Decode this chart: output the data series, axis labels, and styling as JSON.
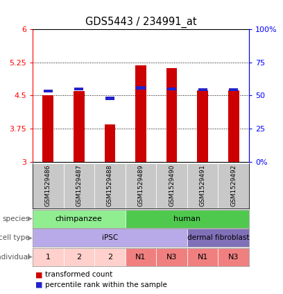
{
  "title": "GDS5443 / 234991_at",
  "samples": [
    "GSM1529486",
    "GSM1529487",
    "GSM1529488",
    "GSM1529489",
    "GSM1529490",
    "GSM1529491",
    "GSM1529492"
  ],
  "red_values": [
    4.5,
    4.6,
    3.85,
    5.18,
    5.13,
    4.62,
    4.62
  ],
  "blue_values": [
    4.6,
    4.65,
    4.44,
    4.67,
    4.65,
    4.63,
    4.63
  ],
  "y_min": 3.0,
  "y_max": 6.0,
  "y_ticks": [
    3,
    3.75,
    4.5,
    5.25,
    6
  ],
  "y_tick_labels": [
    "3",
    "3.75",
    "4.5",
    "5.25",
    "6"
  ],
  "y2_ticks_pct": [
    0,
    25,
    50,
    75,
    100
  ],
  "y2_tick_labels": [
    "0%",
    "25",
    "50",
    "75",
    "100%"
  ],
  "dotted_lines": [
    3.75,
    4.5,
    5.25
  ],
  "species": [
    {
      "label": "chimpanzee",
      "start": 0,
      "end": 3,
      "color": "#90ee90"
    },
    {
      "label": "human",
      "start": 3,
      "end": 7,
      "color": "#4ec94e"
    }
  ],
  "cell_type": [
    {
      "label": "iPSC",
      "start": 0,
      "end": 5,
      "color": "#b8aae8"
    },
    {
      "label": "dermal fibroblast",
      "start": 5,
      "end": 7,
      "color": "#8070b8"
    }
  ],
  "individual": [
    {
      "label": "1",
      "start": 0,
      "end": 1,
      "color": "#ffd0cc"
    },
    {
      "label": "2",
      "start": 1,
      "end": 2,
      "color": "#ffd0cc"
    },
    {
      "label": "2",
      "start": 2,
      "end": 3,
      "color": "#ffd0cc"
    },
    {
      "label": "N1",
      "start": 3,
      "end": 4,
      "color": "#f08080"
    },
    {
      "label": "N3",
      "start": 4,
      "end": 5,
      "color": "#f08080"
    },
    {
      "label": "N1",
      "start": 5,
      "end": 6,
      "color": "#f08080"
    },
    {
      "label": "N3",
      "start": 6,
      "end": 7,
      "color": "#f08080"
    }
  ],
  "bar_width": 0.35,
  "red_color": "#cc0000",
  "blue_color": "#2222cc",
  "sample_box_color": "#c8c8c8",
  "legend_red": "transformed count",
  "legend_blue": "percentile rank within the sample",
  "row_label_color": "#555555",
  "row_arrow_color": "#888888"
}
